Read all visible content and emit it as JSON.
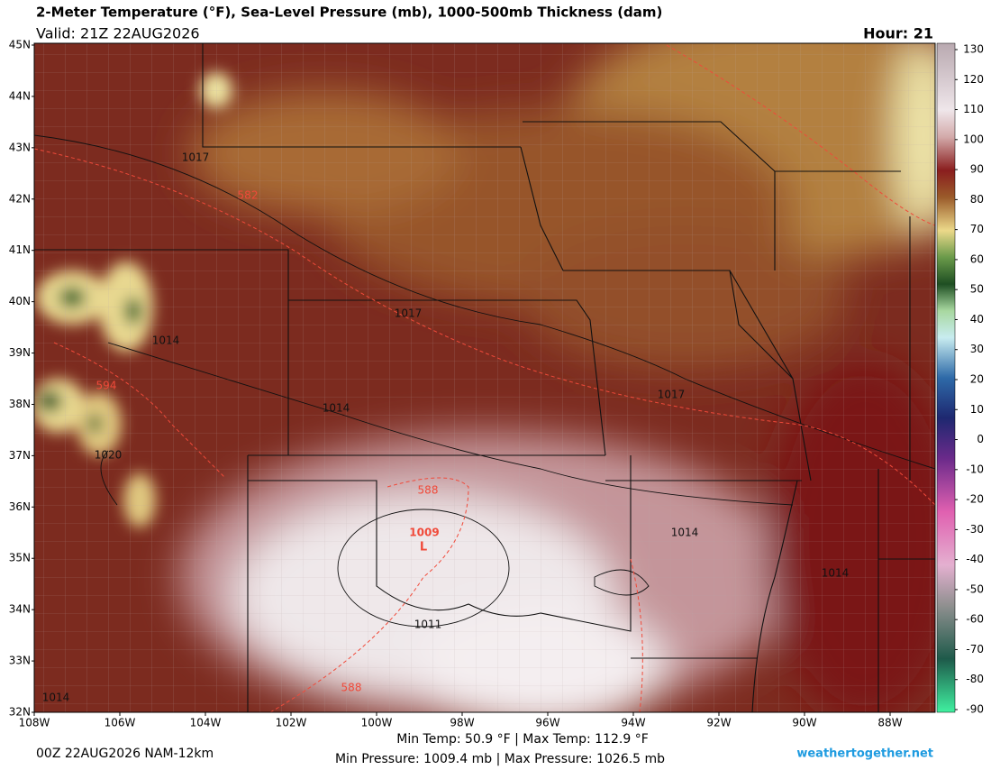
{
  "header": {
    "title": "2-Meter Temperature (°F), Sea-Level Pressure (mb), 1000-500mb Thickness (dam)",
    "valid": "Valid: 21Z 22AUG2026",
    "hour": "Hour: 21"
  },
  "lat_labels": [
    "45N",
    "44N",
    "43N",
    "42N",
    "41N",
    "40N",
    "39N",
    "38N",
    "37N",
    "36N",
    "35N",
    "34N",
    "33N",
    "32N"
  ],
  "lon_labels": [
    "108W",
    "106W",
    "104W",
    "102W",
    "100W",
    "98W",
    "96W",
    "94W",
    "92W",
    "90W",
    "88W"
  ],
  "colorbar_ticks": [
    130,
    120,
    110,
    100,
    90,
    80,
    70,
    60,
    50,
    40,
    30,
    20,
    10,
    0,
    -10,
    -20,
    -30,
    -40,
    -50,
    -60,
    -70,
    -80,
    -90
  ],
  "isobar_labels": [
    "1017",
    "1017",
    "1014",
    "1014",
    "1020",
    "1017",
    "1014",
    "1014",
    "1011",
    "1014"
  ],
  "thickness_labels": [
    "582",
    "594",
    "588",
    "588"
  ],
  "low": {
    "pressure": "1009",
    "symbol": "L"
  },
  "footer": {
    "run": "00Z 22AUG2026 NAM-12km",
    "temps": "Min Temp:  50.9 °F | Max Temp: 112.9 °F",
    "pressures": "Min Pressure: 1009.4 mb | Max Pressure: 1026.5 mb",
    "site": "weathertogether.net"
  }
}
